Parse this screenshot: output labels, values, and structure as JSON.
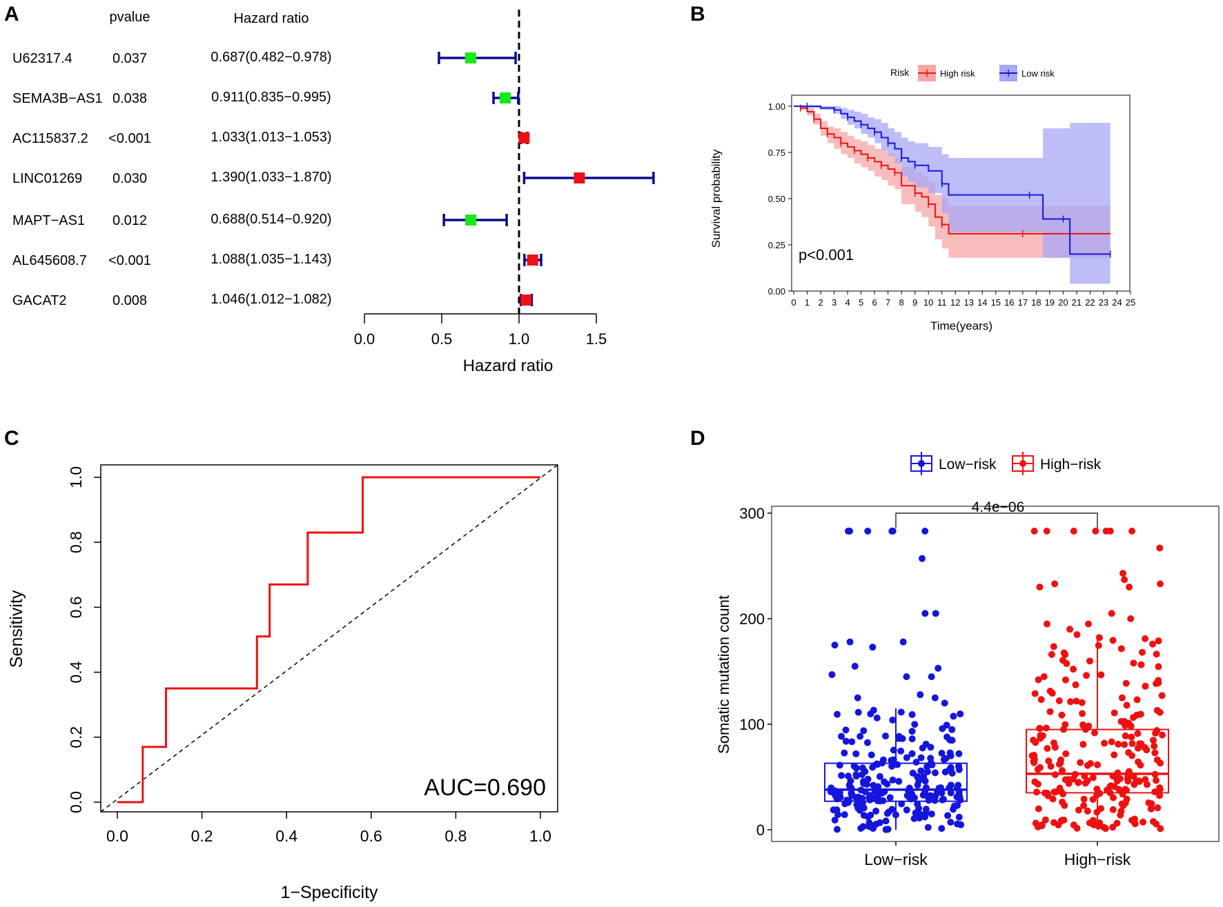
{
  "panels": {
    "A": "A",
    "B": "B",
    "C": "C",
    "D": "D"
  },
  "colors": {
    "forest_line": "#0a0a8c",
    "protective": "#17e817",
    "risk": "#ee1111",
    "high_risk": "#ee1111",
    "high_risk_band": "#f7a5a5",
    "low_risk": "#1515dd",
    "low_risk_band": "#a7a7f5",
    "roc_line": "#ee1111"
  },
  "chart_data": [
    {
      "panel": "A",
      "type": "forest",
      "col_headers": {
        "pvalue": "pvalue",
        "hr": "Hazard ratio"
      },
      "xlabel": "Hazard ratio",
      "xlim": [
        0,
        1.5
      ],
      "xticks": [
        "0.0",
        "0.5",
        "1.0",
        "1.5"
      ],
      "reference_line": 1.0,
      "rows": [
        {
          "gene": "U62317.4",
          "pvalue": "0.037",
          "hr_text": "0.687(0.482−0.978)",
          "hr": 0.687,
          "lo": 0.482,
          "hi": 0.978
        },
        {
          "gene": "SEMA3B−AS1",
          "pvalue": "0.038",
          "hr_text": "0.911(0.835−0.995)",
          "hr": 0.911,
          "lo": 0.835,
          "hi": 0.995
        },
        {
          "gene": "AC115837.2",
          "pvalue": "<0.001",
          "hr_text": "1.033(1.013−1.053)",
          "hr": 1.033,
          "lo": 1.013,
          "hi": 1.053
        },
        {
          "gene": "LINC01269",
          "pvalue": "0.030",
          "hr_text": "1.390(1.033−1.870)",
          "hr": 1.39,
          "lo": 1.033,
          "hi": 1.87
        },
        {
          "gene": "MAPT−AS1",
          "pvalue": "0.012",
          "hr_text": "0.688(0.514−0.920)",
          "hr": 0.688,
          "lo": 0.514,
          "hi": 0.92
        },
        {
          "gene": "AL645608.7",
          "pvalue": "<0.001",
          "hr_text": "1.088(1.035−1.143)",
          "hr": 1.088,
          "lo": 1.035,
          "hi": 1.143
        },
        {
          "gene": "GACAT2",
          "pvalue": "0.008",
          "hr_text": "1.046(1.012−1.082)",
          "hr": 1.046,
          "lo": 1.012,
          "hi": 1.082
        }
      ]
    },
    {
      "panel": "B",
      "type": "line",
      "subtype": "kaplan-meier",
      "xlabel": "Time(years)",
      "ylabel": "Survival probability",
      "xlim": [
        0,
        25
      ],
      "ylim": [
        0,
        1
      ],
      "xticks": [
        "0",
        "1",
        "2",
        "3",
        "4",
        "5",
        "6",
        "7",
        "8",
        "9",
        "10",
        "11",
        "12",
        "13",
        "14",
        "15",
        "16",
        "17",
        "18",
        "19",
        "20",
        "21",
        "22",
        "23",
        "24",
        "25"
      ],
      "yticks": [
        "0.00",
        "0.25",
        "0.50",
        "0.75",
        "1.00"
      ],
      "legend_title": "Risk",
      "legend_position": "top",
      "annotation": "p<0.001",
      "series": [
        {
          "name": "High risk",
          "x": [
            0,
            0.5,
            1,
            1.5,
            2,
            2.5,
            3,
            3.5,
            4,
            4.5,
            5,
            5.5,
            6,
            6.5,
            7,
            7.5,
            8,
            9,
            9.5,
            10,
            10.5,
            11,
            11.5,
            17,
            23.5
          ],
          "y": [
            1.0,
            0.99,
            0.97,
            0.93,
            0.88,
            0.85,
            0.83,
            0.8,
            0.78,
            0.76,
            0.74,
            0.72,
            0.7,
            0.68,
            0.66,
            0.64,
            0.57,
            0.53,
            0.51,
            0.47,
            0.4,
            0.36,
            0.31,
            0.31,
            0.31
          ],
          "ci_low": [
            1.0,
            0.98,
            0.95,
            0.9,
            0.84,
            0.8,
            0.77,
            0.74,
            0.72,
            0.69,
            0.67,
            0.65,
            0.62,
            0.6,
            0.57,
            0.55,
            0.47,
            0.43,
            0.4,
            0.35,
            0.28,
            0.23,
            0.18,
            0.18,
            0.18
          ],
          "ci_high": [
            1.0,
            1.0,
            0.99,
            0.96,
            0.92,
            0.89,
            0.88,
            0.86,
            0.84,
            0.82,
            0.81,
            0.79,
            0.77,
            0.76,
            0.74,
            0.72,
            0.67,
            0.64,
            0.62,
            0.59,
            0.52,
            0.5,
            0.46,
            0.46,
            0.55
          ]
        },
        {
          "name": "Low risk",
          "x": [
            0,
            1,
            2,
            3,
            3.5,
            4,
            4.5,
            5,
            5.5,
            6,
            6.5,
            7,
            7.5,
            8,
            8.5,
            9,
            10,
            11,
            11.5,
            17.5,
            18.5,
            20,
            20.5,
            23.5
          ],
          "y": [
            1.0,
            1.0,
            0.99,
            0.98,
            0.96,
            0.94,
            0.92,
            0.9,
            0.88,
            0.86,
            0.83,
            0.8,
            0.77,
            0.72,
            0.7,
            0.68,
            0.65,
            0.58,
            0.52,
            0.52,
            0.39,
            0.39,
            0.2,
            0.2
          ],
          "ci_low": [
            1.0,
            0.99,
            0.98,
            0.96,
            0.93,
            0.9,
            0.88,
            0.85,
            0.83,
            0.8,
            0.76,
            0.73,
            0.69,
            0.62,
            0.59,
            0.56,
            0.53,
            0.42,
            0.32,
            0.32,
            0.18,
            0.18,
            0.04,
            0.04
          ],
          "ci_high": [
            1.0,
            1.0,
            1.0,
            1.0,
            0.99,
            0.98,
            0.97,
            0.96,
            0.94,
            0.93,
            0.91,
            0.88,
            0.86,
            0.83,
            0.81,
            0.8,
            0.78,
            0.74,
            0.72,
            0.72,
            0.88,
            0.88,
            0.91,
            0.91
          ]
        }
      ]
    },
    {
      "panel": "C",
      "type": "line",
      "subtype": "roc",
      "xlabel": "1−Specificity",
      "ylabel": "Sensitivity",
      "xlim": [
        0,
        1
      ],
      "ylim": [
        0,
        1
      ],
      "xticks": [
        "0.0",
        "0.2",
        "0.4",
        "0.6",
        "0.8",
        "1.0"
      ],
      "yticks": [
        "0.0",
        "0.2",
        "0.4",
        "0.6",
        "0.8",
        "1.0"
      ],
      "auc_label": "AUC=0.690",
      "x": [
        0,
        0.06,
        0.06,
        0.115,
        0.115,
        0.33,
        0.33,
        0.36,
        0.36,
        0.45,
        0.45,
        0.58,
        0.58,
        1.0
      ],
      "y": [
        0,
        0,
        0.17,
        0.17,
        0.35,
        0.35,
        0.51,
        0.51,
        0.67,
        0.67,
        0.83,
        0.83,
        1.0,
        1.0
      ]
    },
    {
      "panel": "D",
      "type": "boxplot",
      "ylabel": "Somatic mutation count",
      "ylim": [
        0,
        300
      ],
      "yticks": [
        "0",
        "100",
        "200",
        "300"
      ],
      "categories": [
        "Low−risk",
        "High−risk"
      ],
      "legend": [
        "Low−risk",
        "High−risk"
      ],
      "legend_position": "top",
      "pvalue_label": "4.4e−06",
      "groups": [
        {
          "name": "Low−risk",
          "min": 0,
          "q1": 27,
          "median": 38,
          "q3": 63,
          "whisker_high": 115,
          "outliers": [
            283,
            283,
            283,
            283,
            283,
            283,
            257,
            205,
            205,
            178,
            178,
            175,
            173,
            155,
            153,
            147,
            145,
            145,
            128,
            125,
            125,
            120
          ]
        },
        {
          "name": "High−risk",
          "min": 0,
          "q1": 35,
          "median": 53,
          "q3": 95,
          "whisker_high": 185,
          "outliers": [
            283,
            283,
            283,
            283,
            283,
            283,
            283,
            267,
            243,
            237,
            233,
            233,
            230,
            230,
            205,
            200,
            195,
            195,
            190
          ]
        }
      ]
    }
  ]
}
